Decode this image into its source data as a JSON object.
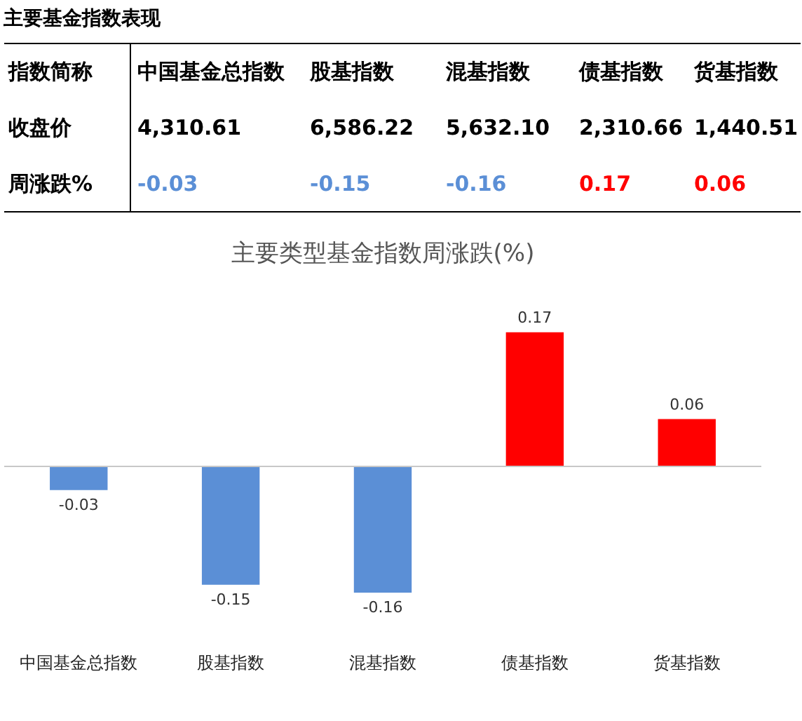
{
  "chart_data": [
    {
      "type": "other",
      "title": "主要基金指数表现",
      "annotations": [
        "指数简称",
        "中国基金总指数",
        "股基指数",
        "混基指数",
        "债基指数",
        "货基指数",
        "收盘价",
        "4,310.61",
        "6,586.22",
        "5,632.10",
        "2,310.66",
        "1,440.51",
        "周涨跌%",
        "-0.03",
        "-0.15",
        "-0.16",
        "0.17",
        "0.06"
      ]
    },
    {
      "type": "bar",
      "title": "主要类型基金指数周涨跌(%)",
      "categories": [
        "中国基金总指数",
        "股基指数",
        "混基指数",
        "债基指数",
        "货基指数"
      ],
      "values": [
        -0.03,
        -0.15,
        -0.16,
        0.17,
        0.06
      ],
      "colors": [
        "#5b8fd6",
        "#5b8fd6",
        "#5b8fd6",
        "#ff0000",
        "#ff0000"
      ],
      "data_labels": true
    }
  ]
}
